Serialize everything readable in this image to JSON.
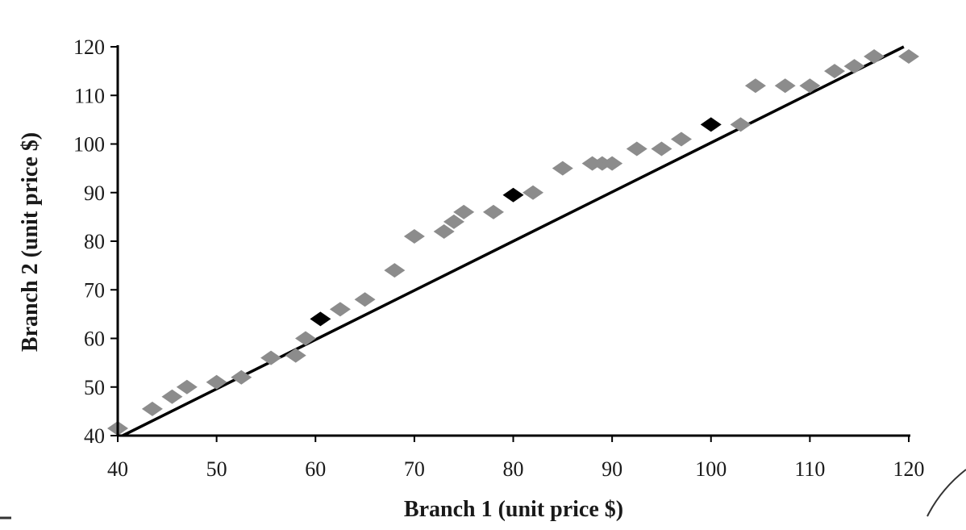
{
  "chart_data": {
    "type": "scatter",
    "title": "",
    "xlabel": "Branch 1 (unit price $)",
    "ylabel": "Branch 2 (unit price $)",
    "xlim": [
      40,
      120
    ],
    "ylim": [
      40,
      120
    ],
    "xticks": [
      "40",
      "50",
      "60",
      "70",
      "80",
      "90",
      "100",
      "110",
      "120"
    ],
    "yticks": [
      "40",
      "50",
      "60",
      "70",
      "80",
      "90",
      "100",
      "110",
      "120"
    ],
    "grid": false,
    "legend": "none",
    "reference_line": {
      "from": [
        40.5,
        40
      ],
      "to": [
        119.5,
        120
      ],
      "color": "#000000"
    },
    "marker": "diamond",
    "colors": {
      "gray": "#8c8c8c",
      "black": "#000000",
      "axis": "#000000"
    },
    "points": [
      {
        "x": 40,
        "y": 41.5,
        "color": "gray"
      },
      {
        "x": 43.5,
        "y": 45.5,
        "color": "gray"
      },
      {
        "x": 45.5,
        "y": 48,
        "color": "gray"
      },
      {
        "x": 47,
        "y": 50,
        "color": "gray"
      },
      {
        "x": 50,
        "y": 51,
        "color": "gray"
      },
      {
        "x": 52.5,
        "y": 52,
        "color": "gray"
      },
      {
        "x": 55.5,
        "y": 56,
        "color": "gray"
      },
      {
        "x": 58,
        "y": 56.5,
        "color": "gray"
      },
      {
        "x": 59,
        "y": 60,
        "color": "gray"
      },
      {
        "x": 60.5,
        "y": 64,
        "color": "black"
      },
      {
        "x": 62.5,
        "y": 66,
        "color": "gray"
      },
      {
        "x": 65,
        "y": 68,
        "color": "gray"
      },
      {
        "x": 68,
        "y": 74,
        "color": "gray"
      },
      {
        "x": 70,
        "y": 81,
        "color": "gray"
      },
      {
        "x": 73,
        "y": 82,
        "color": "gray"
      },
      {
        "x": 74,
        "y": 84,
        "color": "gray"
      },
      {
        "x": 75,
        "y": 86,
        "color": "gray"
      },
      {
        "x": 78,
        "y": 86,
        "color": "gray"
      },
      {
        "x": 80,
        "y": 89.5,
        "color": "black"
      },
      {
        "x": 82,
        "y": 90,
        "color": "gray"
      },
      {
        "x": 85,
        "y": 95,
        "color": "gray"
      },
      {
        "x": 88,
        "y": 96,
        "color": "gray"
      },
      {
        "x": 89,
        "y": 96,
        "color": "gray"
      },
      {
        "x": 90,
        "y": 96,
        "color": "gray"
      },
      {
        "x": 92.5,
        "y": 99,
        "color": "gray"
      },
      {
        "x": 95,
        "y": 99,
        "color": "gray"
      },
      {
        "x": 97,
        "y": 101,
        "color": "gray"
      },
      {
        "x": 100,
        "y": 104,
        "color": "black"
      },
      {
        "x": 103,
        "y": 104,
        "color": "gray"
      },
      {
        "x": 104.5,
        "y": 112,
        "color": "gray"
      },
      {
        "x": 107.5,
        "y": 112,
        "color": "gray"
      },
      {
        "x": 110,
        "y": 112,
        "color": "gray"
      },
      {
        "x": 112.5,
        "y": 115,
        "color": "gray"
      },
      {
        "x": 114.5,
        "y": 116,
        "color": "gray"
      },
      {
        "x": 116.5,
        "y": 118,
        "color": "gray"
      },
      {
        "x": 120,
        "y": 118,
        "color": "gray"
      }
    ]
  }
}
